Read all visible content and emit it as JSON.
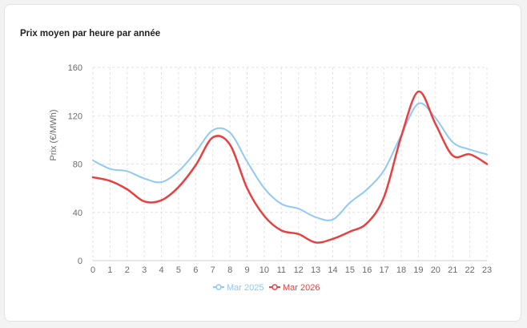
{
  "card": {
    "title": "Prix moyen par heure par année"
  },
  "chart_data": {
    "type": "line",
    "ylabel": "Prix (€/MWh)",
    "xlabel": "",
    "ylim": [
      0,
      160
    ],
    "yticks": [
      0,
      40,
      80,
      120,
      160
    ],
    "x": [
      "0",
      "1",
      "2",
      "3",
      "4",
      "5",
      "6",
      "7",
      "8",
      "9",
      "10",
      "11",
      "12",
      "13",
      "14",
      "15",
      "16",
      "17",
      "18",
      "19",
      "20",
      "21",
      "22",
      "23"
    ],
    "grid": true,
    "legend_position": "bottom-center",
    "series": [
      {
        "name": "Mar 2025",
        "color": "#90c8f8",
        "values": [
          83,
          76,
          74,
          68,
          65,
          74,
          90,
          108,
          106,
          82,
          60,
          47,
          43,
          36,
          34,
          48,
          59,
          75,
          104,
          130,
          118,
          98,
          92,
          88
        ]
      },
      {
        "name": "Mar 2026",
        "color": "#e84040",
        "values": [
          69,
          66,
          59,
          49,
          50,
          61,
          79,
          102,
          96,
          60,
          37,
          25,
          22,
          15,
          18,
          24,
          31,
          53,
          103,
          140,
          113,
          87,
          88,
          80
        ]
      }
    ]
  }
}
